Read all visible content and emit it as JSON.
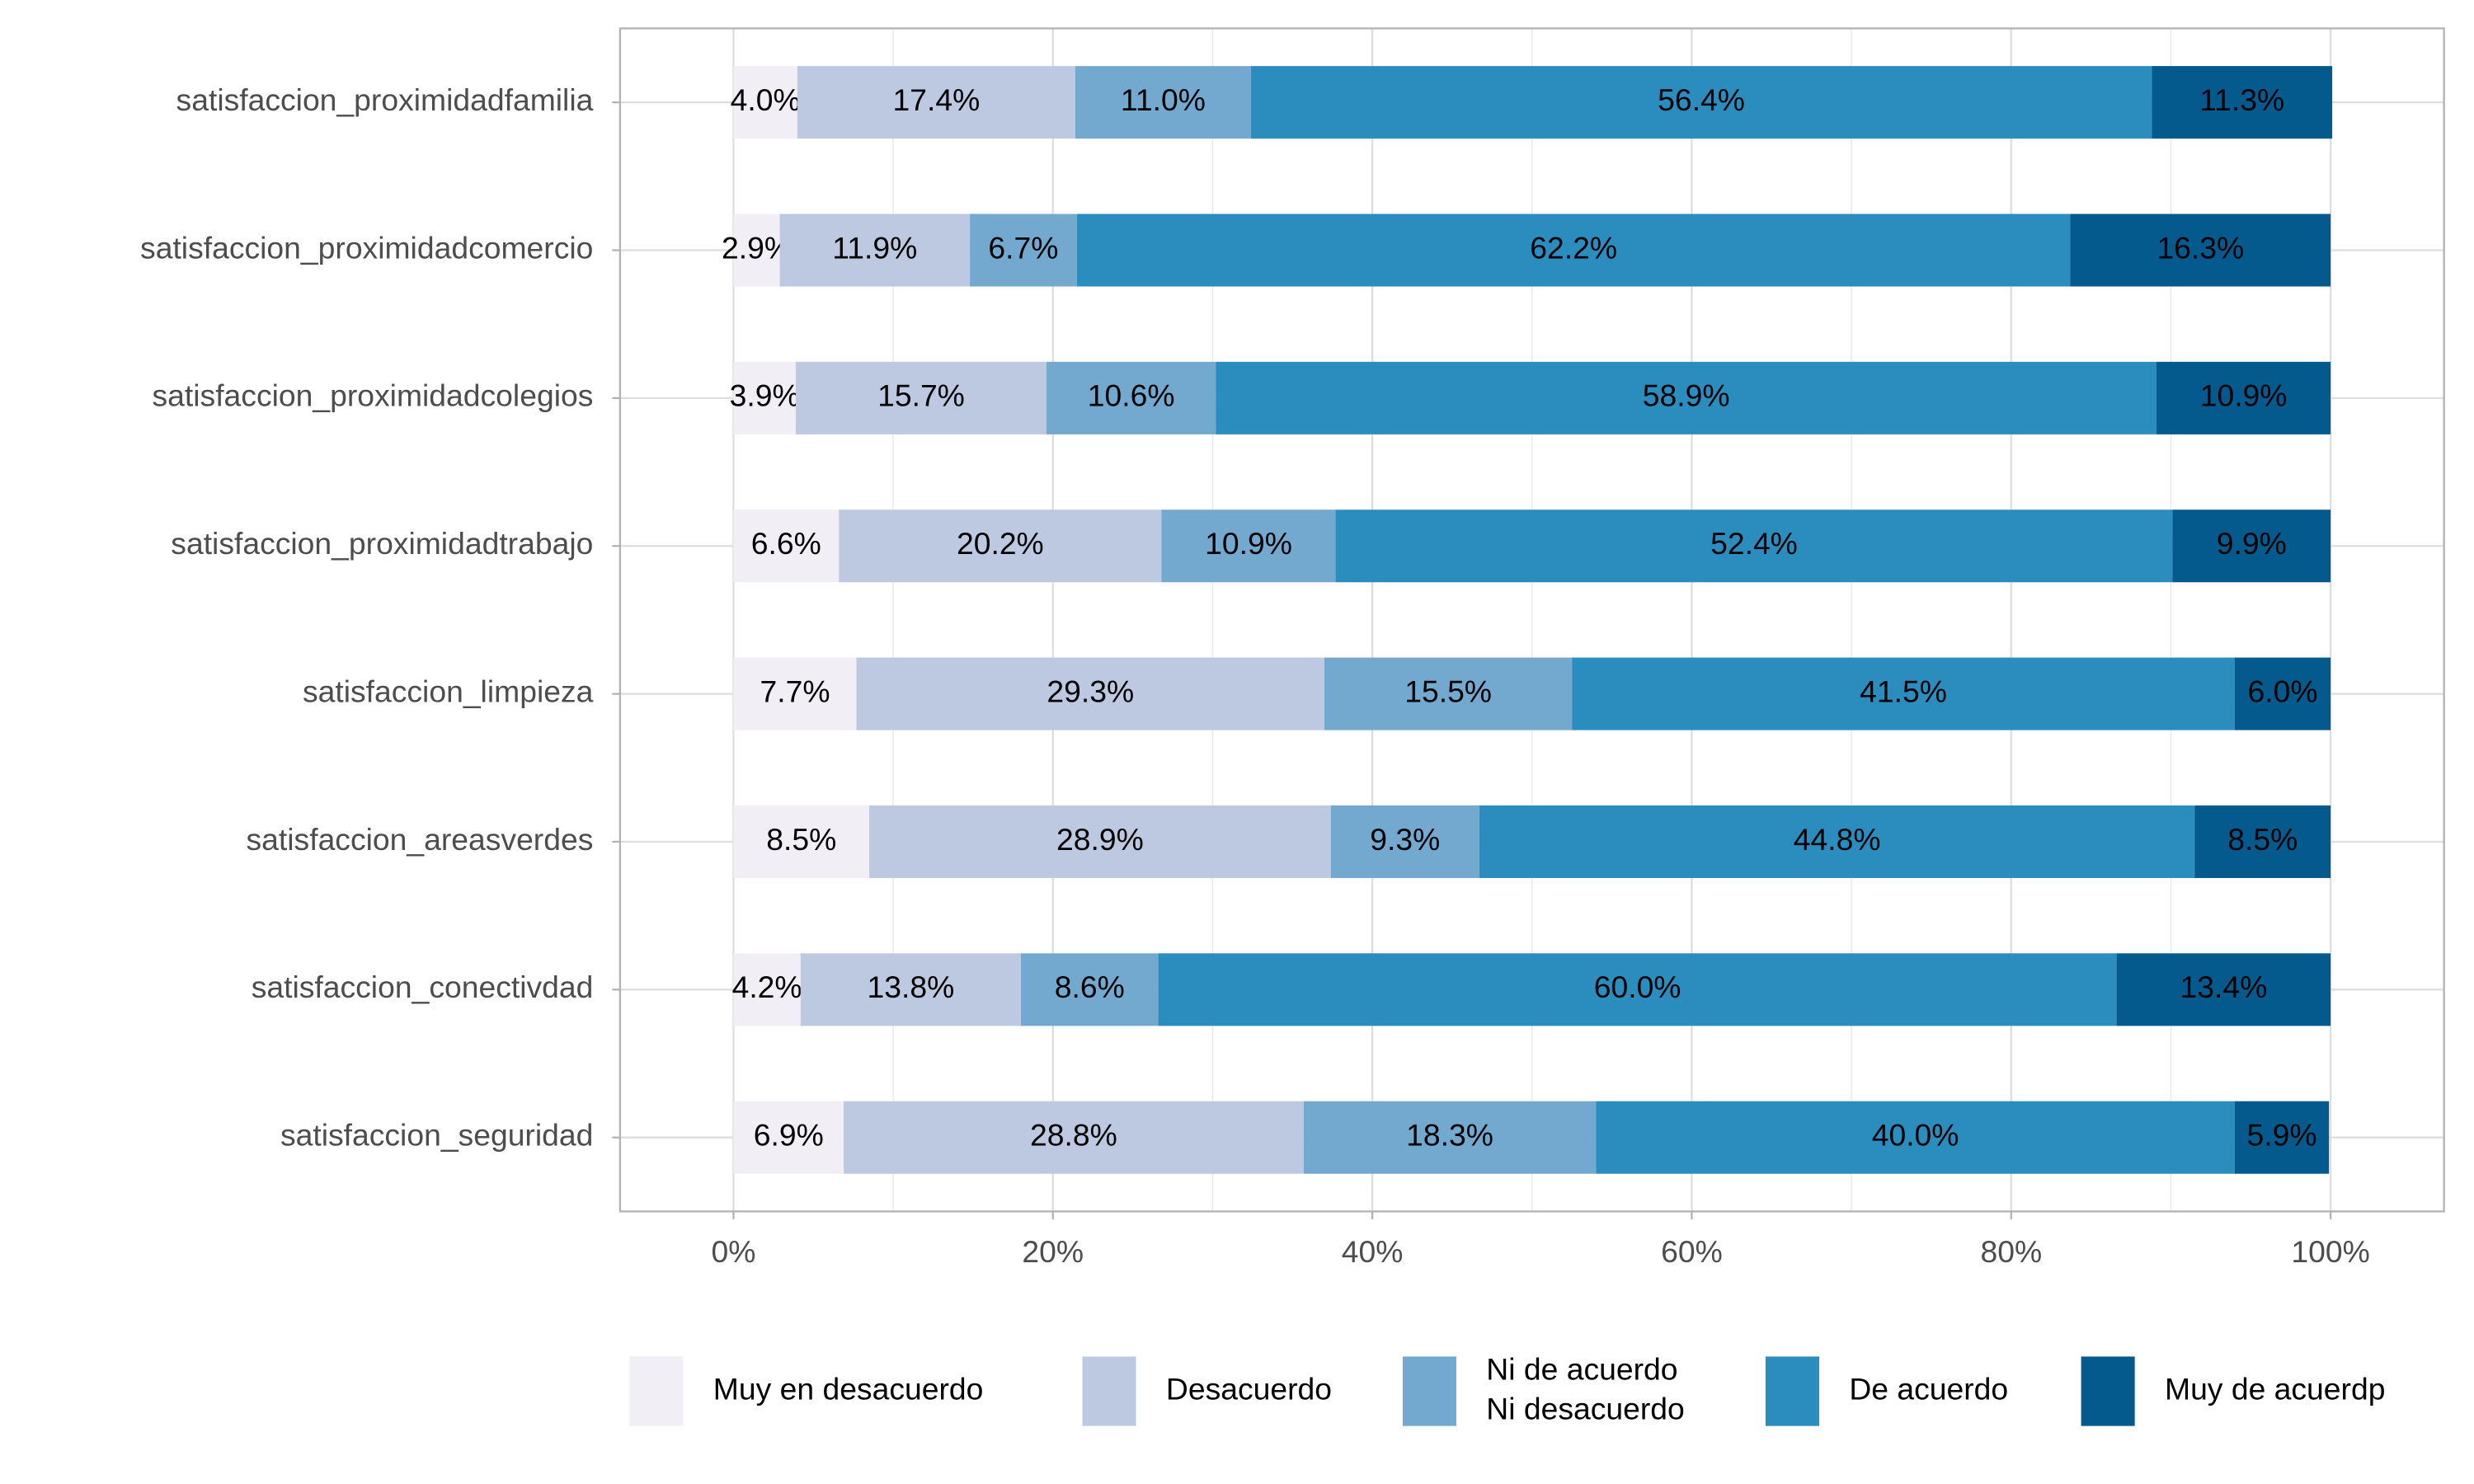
{
  "chart_data": {
    "type": "stacked-barh",
    "categories": [
      "satisfaccion_proximidadfamilia",
      "satisfaccion_proximidadcomercio",
      "satisfaccion_proximidadcolegios",
      "satisfaccion_proximidadtrabajo",
      "satisfaccion_limpieza",
      "satisfaccion_areasverdes",
      "satisfaccion_conectivdad",
      "satisfaccion_seguridad"
    ],
    "series": [
      {
        "name": "Muy en desacuerdo",
        "color": "#f1eef6",
        "values": [
          4.0,
          2.9,
          3.9,
          6.6,
          7.7,
          8.5,
          4.2,
          6.9
        ],
        "value_labels": [
          "4.0%",
          "2.9%",
          "3.9%",
          "6.6%",
          "7.7%",
          "8.5%",
          "4.2%",
          "6.9%"
        ]
      },
      {
        "name": "Desacuerdo",
        "color": "#bdc9e1",
        "values": [
          17.4,
          11.9,
          15.7,
          20.2,
          29.3,
          28.9,
          13.8,
          28.8
        ],
        "value_labels": [
          "17.4%",
          "11.9%",
          "15.7%",
          "20.2%",
          "29.3%",
          "28.9%",
          "13.8%",
          "28.8%"
        ]
      },
      {
        "name": "Ni de acuerdo\nNi desacuerdo",
        "color": "#74a9cf",
        "values": [
          11.0,
          6.7,
          10.6,
          10.9,
          15.5,
          9.3,
          8.6,
          18.3
        ],
        "value_labels": [
          "11.0%",
          "6.7%",
          "10.6%",
          "10.9%",
          "15.5%",
          "9.3%",
          "8.6%",
          "18.3%"
        ]
      },
      {
        "name": "De acuerdo",
        "color": "#2b8cbe",
        "values": [
          56.4,
          62.2,
          58.9,
          52.4,
          41.5,
          44.8,
          60.0,
          40.0
        ],
        "value_labels": [
          "56.4%",
          "62.2%",
          "58.9%",
          "52.4%",
          "41.5%",
          "44.8%",
          "60.0%",
          "40.0%"
        ]
      },
      {
        "name": "Muy de acuerdp",
        "color": "#045a8d",
        "values": [
          11.3,
          16.3,
          10.9,
          9.9,
          6.0,
          8.5,
          13.4,
          5.9
        ],
        "value_labels": [
          "11.3%",
          "16.3%",
          "10.9%",
          "9.9%",
          "6.0%",
          "8.5%",
          "13.4%",
          "5.9%"
        ]
      }
    ],
    "xlim": [
      -7.1,
      107.1
    ],
    "xticks": [
      {
        "value": 0,
        "label": "0%"
      },
      {
        "value": 20,
        "label": "20%"
      },
      {
        "value": 40,
        "label": "40%"
      },
      {
        "value": 60,
        "label": "60%"
      },
      {
        "value": 80,
        "label": "80%"
      },
      {
        "value": 100,
        "label": "100%"
      }
    ],
    "grid": true,
    "legend": "bottom"
  }
}
